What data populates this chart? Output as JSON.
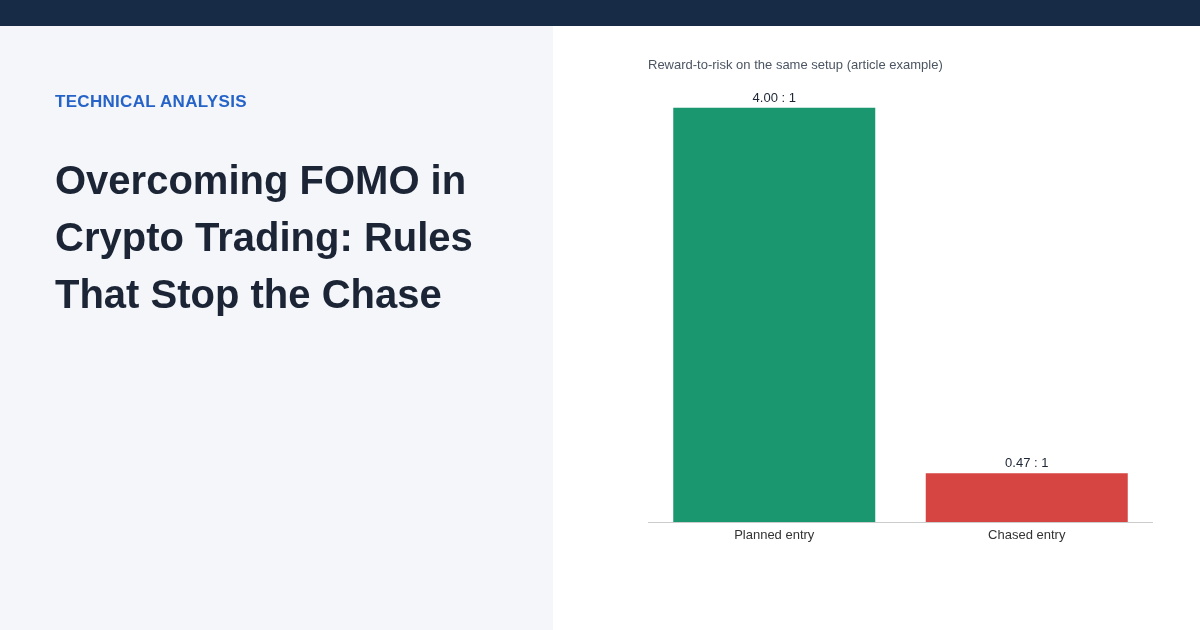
{
  "chart_data": {
    "type": "bar",
    "title": "Overcoming FOMO in Crypto Trading: Rules That Stop the Chase",
    "subtitle": "Reward-to-risk on the same setup (article example)",
    "annotations": [
      "TECHNICAL ANALYSIS"
    ],
    "categories": [
      "Planned entry",
      "Chased entry"
    ],
    "values": [
      4.0,
      0.47
    ],
    "colors": [
      "#1b9770",
      "#d64541"
    ],
    "value_labels": [
      "4.00 : 1",
      "0.47 : 1"
    ]
  }
}
